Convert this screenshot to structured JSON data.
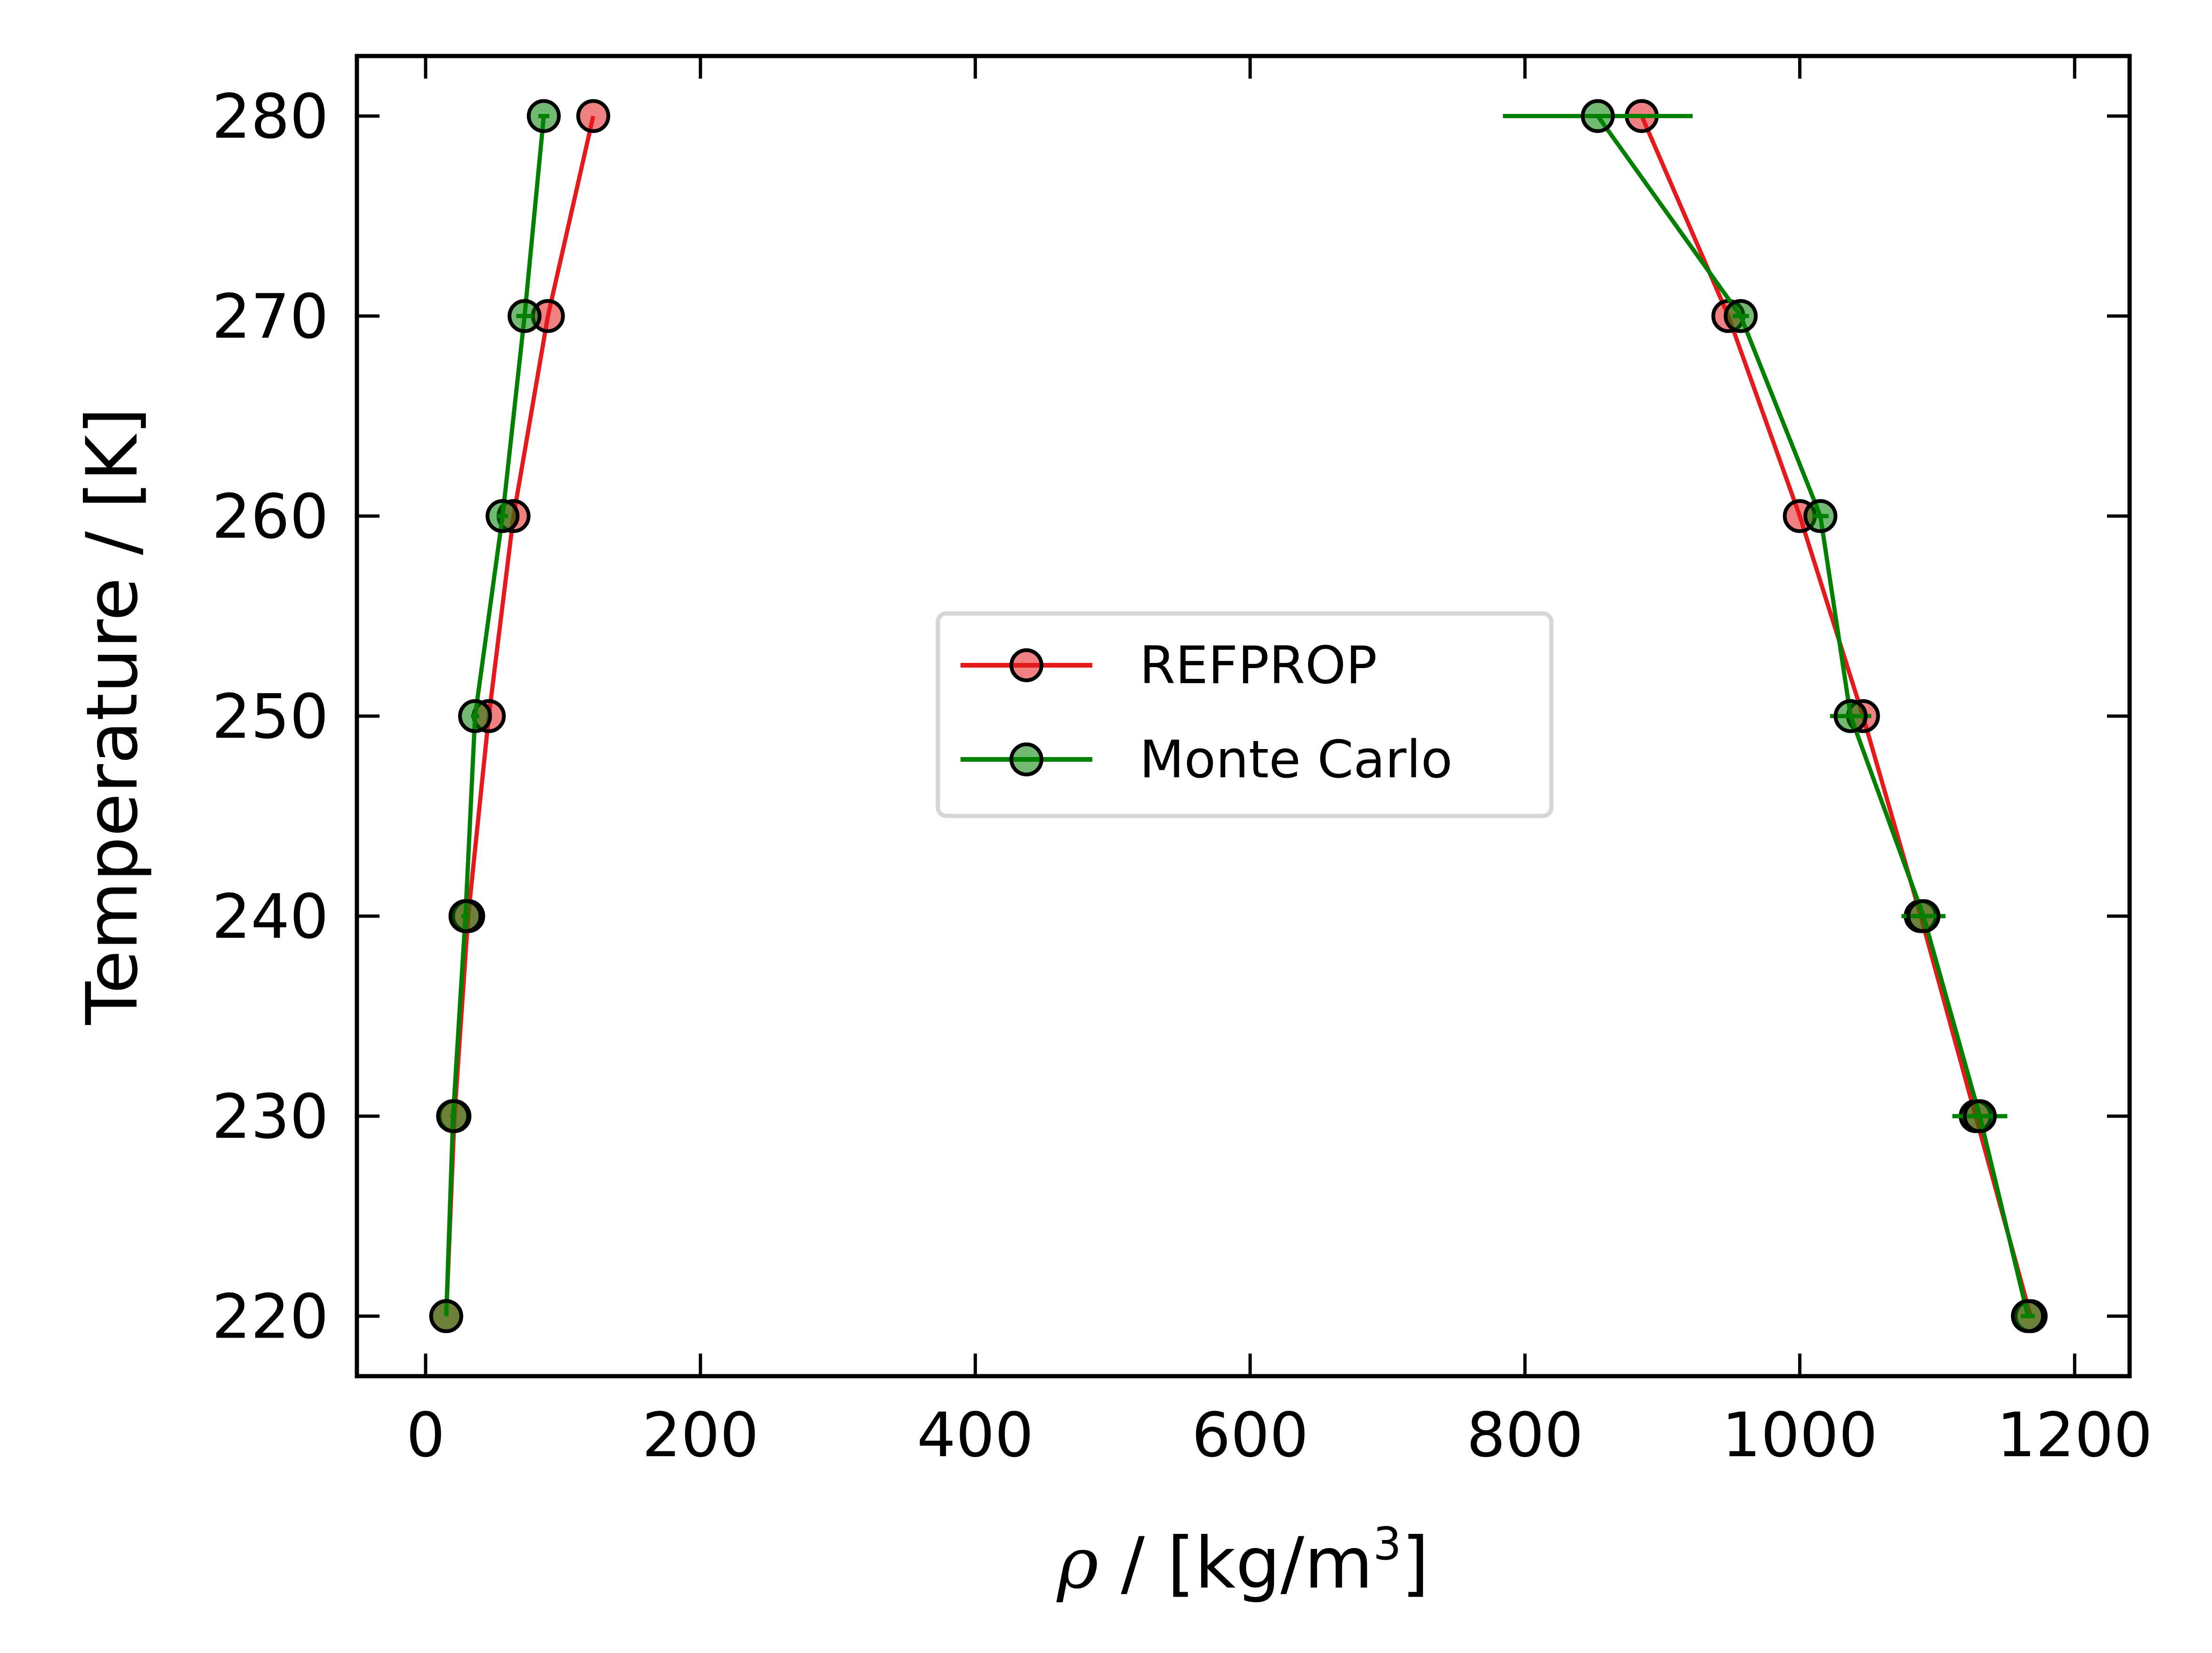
{
  "chart_data": {
    "type": "scatter",
    "xlabel": {
      "symbol": "ρ",
      "text": " / [kg/m",
      "superscript": "3",
      "suffix": "]"
    },
    "ylabel": "Temperature / [K]",
    "xlim": [
      -50,
      1240
    ],
    "ylim": [
      217,
      283
    ],
    "xticks": [
      0,
      200,
      400,
      600,
      800,
      1000,
      1200
    ],
    "xtick_labels": [
      "0",
      "200",
      "400",
      "600",
      "800",
      "1000",
      "1200"
    ],
    "yticks": [
      220,
      230,
      240,
      250,
      260,
      270,
      280
    ],
    "ytick_labels": [
      "220",
      "230",
      "240",
      "250",
      "260",
      "270",
      "280"
    ],
    "grid": false,
    "legend_position": "center",
    "series": [
      {
        "name": "REFPROP",
        "color": "#e41a1c",
        "vapor": [
          {
            "T": 220,
            "rho": 15
          },
          {
            "T": 230,
            "rho": 21
          },
          {
            "T": 240,
            "rho": 31
          },
          {
            "T": 250,
            "rho": 46
          },
          {
            "T": 260,
            "rho": 64
          },
          {
            "T": 270,
            "rho": 89
          },
          {
            "T": 280,
            "rho": 122
          }
        ],
        "liquid": [
          {
            "T": 220,
            "rho": 1168
          },
          {
            "T": 230,
            "rho": 1128
          },
          {
            "T": 240,
            "rho": 1088
          },
          {
            "T": 250,
            "rho": 1046
          },
          {
            "T": 260,
            "rho": 1000
          },
          {
            "T": 270,
            "rho": 948
          },
          {
            "T": 280,
            "rho": 885
          }
        ]
      },
      {
        "name": "Monte Carlo",
        "color": "#008000",
        "vapor": [
          {
            "T": 220,
            "rho": 15,
            "err": 0
          },
          {
            "T": 230,
            "rho": 20,
            "err": 2
          },
          {
            "T": 240,
            "rho": 29,
            "err": 3
          },
          {
            "T": 250,
            "rho": 36,
            "err": 3
          },
          {
            "T": 260,
            "rho": 56,
            "err": 4
          },
          {
            "T": 270,
            "rho": 72,
            "err": 6
          },
          {
            "T": 280,
            "rho": 86,
            "err": 4
          }
        ],
        "liquid": [
          {
            "T": 220,
            "rho": 1166,
            "err": 5
          },
          {
            "T": 230,
            "rho": 1131,
            "err": 20
          },
          {
            "T": 240,
            "rho": 1090,
            "err": 16
          },
          {
            "T": 250,
            "rho": 1037,
            "err": 15
          },
          {
            "T": 260,
            "rho": 1015,
            "err": 6
          },
          {
            "T": 270,
            "rho": 957,
            "err": 6
          },
          {
            "T": 280,
            "rho": 853,
            "err": 69
          }
        ]
      }
    ]
  }
}
